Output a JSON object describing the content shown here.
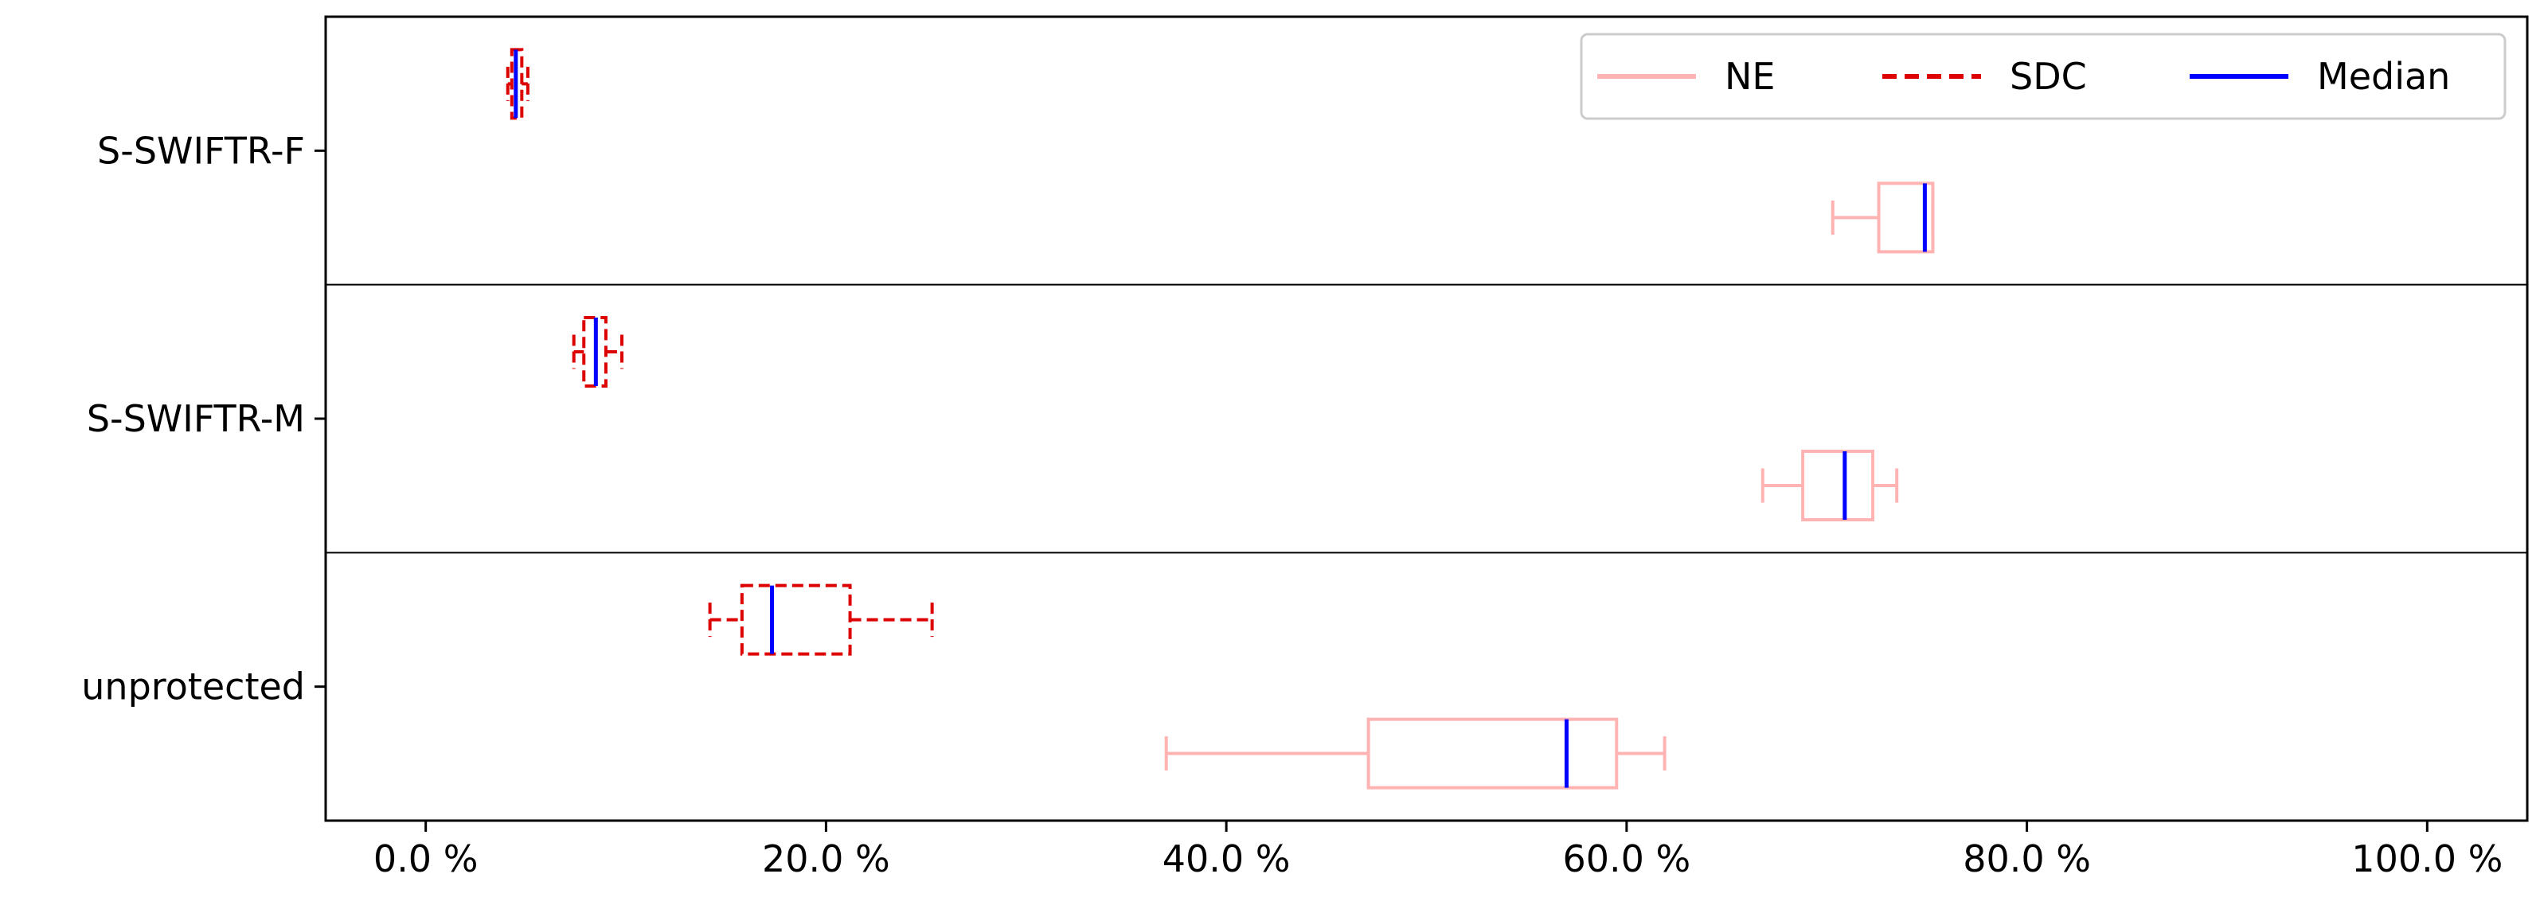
{
  "chart_data": {
    "type": "boxplot",
    "orientation": "horizontal",
    "title": "",
    "xlabel": "",
    "ylabel": "",
    "xlim": [
      -5,
      105
    ],
    "x_ticks": [
      0,
      20,
      40,
      60,
      80,
      100
    ],
    "x_tick_labels": [
      "0.0 %",
      "20.0 %",
      "40.0 %",
      "60.0 %",
      "80.0 %",
      "100.0 %"
    ],
    "grid": false,
    "legend_position": "top-right",
    "categories": [
      "S-SWIFTR-F",
      "S-SWIFTR-M",
      "unprotected"
    ],
    "series": [
      {
        "name": "NE",
        "color": "#ffb3b3",
        "line_style": "solid",
        "boxes": [
          {
            "category": "S-SWIFTR-F",
            "whisker_low": 70.3,
            "q1": 72.6,
            "median": 74.9,
            "q3": 75.3,
            "whisker_high": 75.3
          },
          {
            "category": "S-SWIFTR-M",
            "whisker_low": 66.8,
            "q1": 68.8,
            "median": 70.9,
            "q3": 72.3,
            "whisker_high": 73.5
          },
          {
            "category": "unprotected",
            "whisker_low": 37.0,
            "q1": 47.1,
            "median": 57.0,
            "q3": 59.5,
            "whisker_high": 61.9
          }
        ]
      },
      {
        "name": "SDC",
        "color": "#dd0000",
        "line_style": "dashed",
        "boxes": [
          {
            "category": "S-SWIFTR-F",
            "whisker_low": 4.1,
            "q1": 4.3,
            "median": 4.5,
            "q3": 4.8,
            "whisker_high": 5.1
          },
          {
            "category": "S-SWIFTR-M",
            "whisker_low": 7.4,
            "q1": 7.9,
            "median": 8.5,
            "q3": 9.0,
            "whisker_high": 9.8
          },
          {
            "category": "unprotected",
            "whisker_low": 14.2,
            "q1": 15.8,
            "median": 17.3,
            "q3": 21.2,
            "whisker_high": 25.3
          }
        ]
      }
    ],
    "median_series": {
      "name": "Median",
      "color": "#0000ff"
    }
  }
}
